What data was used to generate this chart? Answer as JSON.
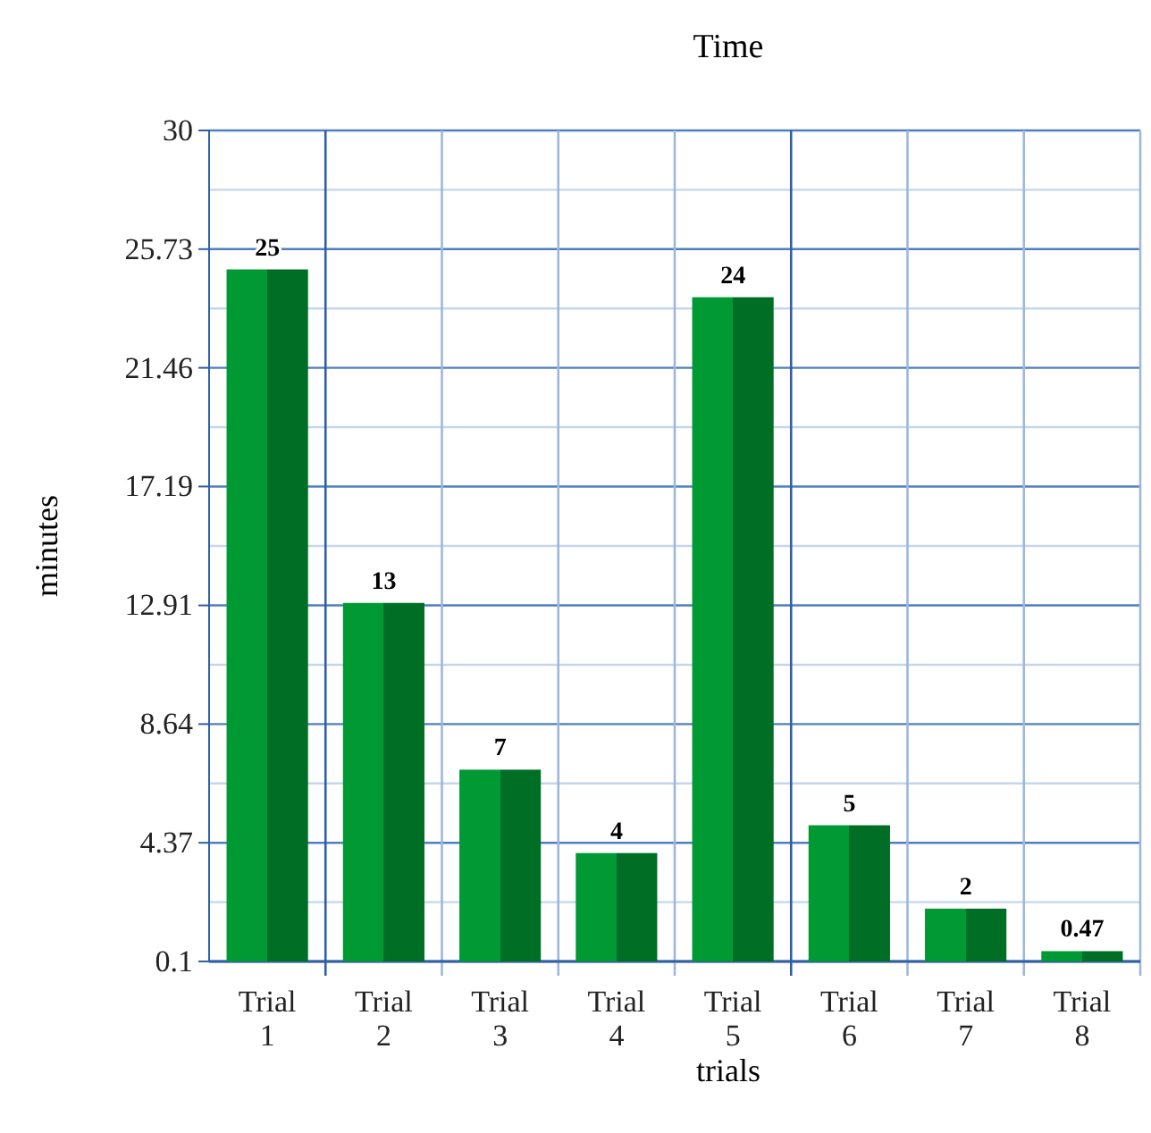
{
  "chart_data": {
    "type": "bar",
    "title": "Time",
    "xlabel": "trials",
    "ylabel": "minutes",
    "categories": [
      "Trial 1",
      "Trial 2",
      "Trial 3",
      "Trial 4",
      "Trial 5",
      "Trial 6",
      "Trial 7",
      "Trial 8"
    ],
    "values": [
      25,
      13,
      7,
      4,
      24,
      5,
      2,
      0.47
    ],
    "color": "#009933",
    "ylim": [
      0.1,
      30
    ],
    "yticks": [
      0.1,
      4.37,
      8.64,
      12.91,
      17.19,
      21.46,
      25.73,
      30
    ],
    "grid": true,
    "data_labels": true
  }
}
